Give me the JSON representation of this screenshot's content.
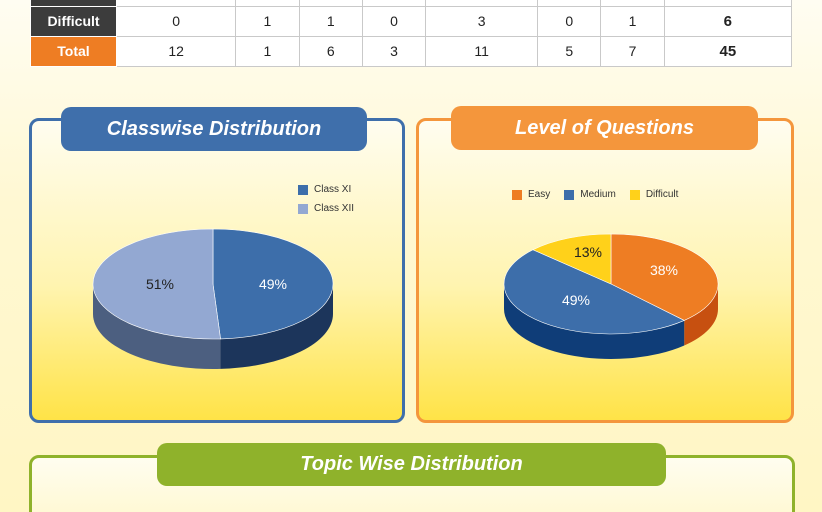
{
  "table": {
    "rows": [
      {
        "label": "",
        "values": [
          "",
          "",
          "",
          "",
          "",
          "",
          ""
        ],
        "total": ""
      },
      {
        "label": "Difficult",
        "values": [
          "0",
          "1",
          "1",
          "0",
          "3",
          "0",
          "1"
        ],
        "total": "6"
      },
      {
        "label": "Total",
        "values": [
          "12",
          "1",
          "6",
          "3",
          "11",
          "5",
          "7"
        ],
        "total": "45"
      }
    ]
  },
  "panels": {
    "classwise": {
      "title": "Classwise Distribution"
    },
    "level": {
      "title": "Level of Questions"
    },
    "topic": {
      "title": "Topic Wise Distribution"
    }
  },
  "chart_data": [
    {
      "type": "pie",
      "title": "Classwise Distribution",
      "labels": [
        "Class XI",
        "Class XII"
      ],
      "values": [
        49,
        51
      ],
      "data_labels": [
        "49%",
        "51%"
      ],
      "colors": [
        "#3d6eaa",
        "#93a8d2"
      ],
      "side_colors": [
        "#1c355b",
        "#4c5f80"
      ],
      "legend": "top-right"
    },
    {
      "type": "pie",
      "title": "Level of Questions",
      "labels": [
        "Easy",
        "Medium",
        "Difficult"
      ],
      "values": [
        38,
        49,
        13
      ],
      "data_labels": [
        "38%",
        "49%",
        "13%"
      ],
      "colors": [
        "#ee7d23",
        "#3d6eaa",
        "#ffd11a"
      ],
      "side_colors": [
        "#c75010",
        "#0f3d78",
        "#c9a000"
      ],
      "legend": "top"
    }
  ]
}
